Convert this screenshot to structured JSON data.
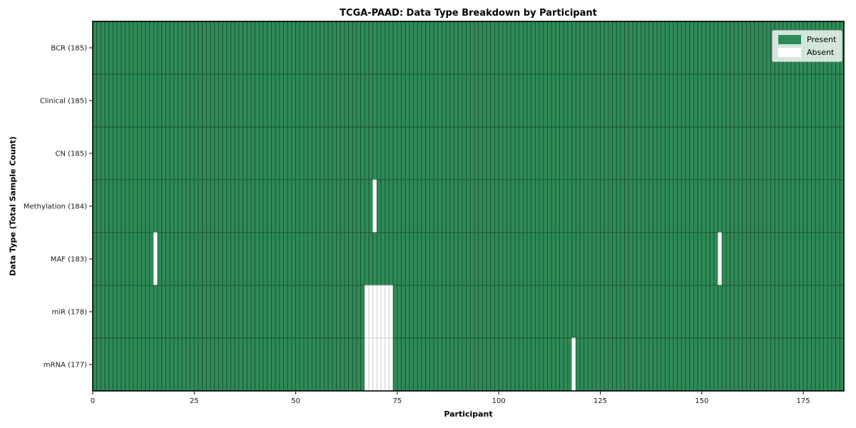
{
  "figure": {
    "title": "TCGA-PAAD: Data Type Breakdown by Participant",
    "xlabel": "Participant",
    "ylabel": "Data Type (Total Sample Count)"
  },
  "legend": {
    "position": "upper right",
    "entries": [
      {
        "label": "Present",
        "color": "#2e8b57"
      },
      {
        "label": "Absent",
        "color": "#ffffff"
      }
    ]
  },
  "chart_data": {
    "type": "heatmap",
    "title": "TCGA-PAAD: Data Type Breakdown by Participant",
    "xlabel": "Participant",
    "ylabel": "Data Type (Total Sample Count)",
    "n_participants": 185,
    "xlim": [
      0,
      185
    ],
    "x_ticks": [
      0,
      25,
      50,
      75,
      100,
      125,
      150,
      175
    ],
    "present_color": "#2e8b57",
    "absent_color": "#ffffff",
    "grid": true,
    "rows": [
      {
        "label": "BCR (185)",
        "data_type": "BCR",
        "total_sample_count": 185,
        "absent_participants": []
      },
      {
        "label": "Clinical (185)",
        "data_type": "Clinical",
        "total_sample_count": 185,
        "absent_participants": []
      },
      {
        "label": "CN (185)",
        "data_type": "CN",
        "total_sample_count": 185,
        "absent_participants": []
      },
      {
        "label": "Methylation (184)",
        "data_type": "Methylation",
        "total_sample_count": 184,
        "absent_participants": [
          69
        ]
      },
      {
        "label": "MAF (183)",
        "data_type": "MAF",
        "total_sample_count": 183,
        "absent_participants": [
          15,
          154
        ]
      },
      {
        "label": "miR (178)",
        "data_type": "miR",
        "total_sample_count": 178,
        "absent_participants": [
          67,
          68,
          69,
          70,
          71,
          72,
          73
        ]
      },
      {
        "label": "mRNA (177)",
        "data_type": "mRNA",
        "total_sample_count": 177,
        "absent_participants": [
          67,
          68,
          69,
          70,
          71,
          72,
          73,
          118
        ]
      }
    ]
  }
}
